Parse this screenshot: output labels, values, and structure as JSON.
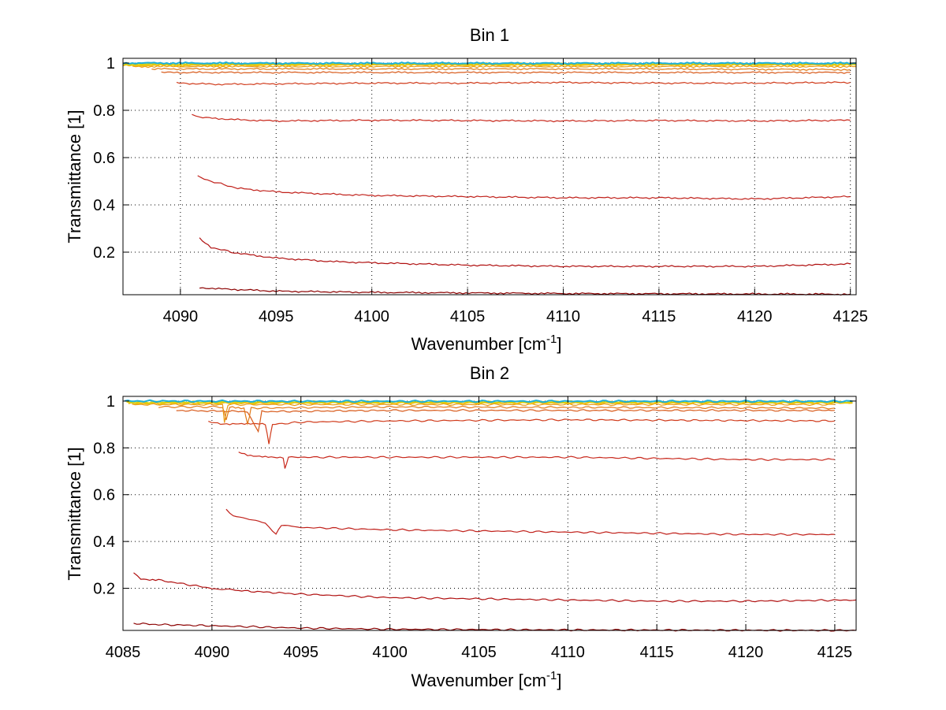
{
  "chart_data": [
    {
      "type": "line",
      "title": "Bin 1",
      "xlabel": "Wavenumber [cm",
      "xlabel_sup": "-1",
      "xlabel_end": "]",
      "ylabel": "Transmittance [1]",
      "xlim": [
        4087,
        4125.3
      ],
      "ylim": [
        0.02,
        1.02
      ],
      "xticks": [
        "4090",
        "4095",
        "4100",
        "4105",
        "4110",
        "4115",
        "4120",
        "4125"
      ],
      "yticks": [
        "0.2",
        "0.4",
        "0.6",
        "0.8",
        "1"
      ],
      "grid": true,
      "series": [
        {
          "color": "#8b0000",
          "start": 4091.0,
          "end": 4125,
          "values": [
            [
              4091.0,
              0.05
            ],
            [
              4092,
              0.045
            ],
            [
              4095,
              0.035
            ],
            [
              4100,
              0.03
            ],
            [
              4110,
              0.025
            ],
            [
              4125,
              0.022
            ]
          ]
        },
        {
          "color": "#b01010",
          "start": 4091.0,
          "end": 4125,
          "values": [
            [
              4091.0,
              0.26
            ],
            [
              4091.6,
              0.22
            ],
            [
              4093,
              0.195
            ],
            [
              4095,
              0.175
            ],
            [
              4098,
              0.16
            ],
            [
              4100,
              0.155
            ],
            [
              4105,
              0.145
            ],
            [
              4110,
              0.14
            ],
            [
              4115,
              0.14
            ],
            [
              4120,
              0.14
            ],
            [
              4125,
              0.15
            ]
          ]
        },
        {
          "color": "#c0201a",
          "start": 4090.9,
          "end": 4125,
          "values": [
            [
              4090.9,
              0.52
            ],
            [
              4091.6,
              0.5
            ],
            [
              4093,
              0.47
            ],
            [
              4095,
              0.455
            ],
            [
              4098,
              0.445
            ],
            [
              4100,
              0.44
            ],
            [
              4105,
              0.435
            ],
            [
              4110,
              0.43
            ],
            [
              4115,
              0.43
            ],
            [
              4120,
              0.425
            ],
            [
              4125,
              0.435
            ]
          ]
        },
        {
          "color": "#c8281c",
          "start": 4090.6,
          "end": 4125,
          "values": [
            [
              4090.6,
              0.78
            ],
            [
              4091,
              0.77
            ],
            [
              4093,
              0.76
            ],
            [
              4095,
              0.755
            ],
            [
              4100,
              0.758
            ],
            [
              4105,
              0.757
            ],
            [
              4110,
              0.755
            ],
            [
              4115,
              0.757
            ],
            [
              4120,
              0.755
            ],
            [
              4125,
              0.758
            ]
          ]
        },
        {
          "color": "#d03a1a",
          "start": 4089.8,
          "end": 4125,
          "values": [
            [
              4089.8,
              0.915
            ],
            [
              4092,
              0.91
            ],
            [
              4095,
              0.912
            ],
            [
              4100,
              0.915
            ],
            [
              4105,
              0.915
            ],
            [
              4110,
              0.918
            ],
            [
              4115,
              0.915
            ],
            [
              4120,
              0.915
            ],
            [
              4125,
              0.918
            ]
          ]
        },
        {
          "color": "#d85a1a",
          "start": 4089.0,
          "end": 4125,
          "values": [
            [
              4089.0,
              0.96
            ],
            [
              4095,
              0.96
            ],
            [
              4105,
              0.96
            ],
            [
              4115,
              0.96
            ],
            [
              4125,
              0.96
            ]
          ]
        },
        {
          "color": "#e07a18",
          "start": 4088.5,
          "end": 4125,
          "values": [
            [
              4088.5,
              0.975
            ],
            [
              4095,
              0.975
            ],
            [
              4105,
              0.975
            ],
            [
              4115,
              0.975
            ],
            [
              4125,
              0.972
            ]
          ]
        },
        {
          "color": "#e89a18",
          "start": 4087.5,
          "end": 4125.3,
          "values": [
            [
              4087.5,
              0.985
            ],
            [
              4095,
              0.985
            ],
            [
              4105,
              0.985
            ],
            [
              4115,
              0.985
            ],
            [
              4125.3,
              0.985
            ]
          ]
        },
        {
          "color": "#f0bc10",
          "start": 4087,
          "end": 4125.3,
          "values": [
            [
              4087,
              0.99
            ],
            [
              4095,
              0.992
            ],
            [
              4105,
              0.992
            ],
            [
              4115,
              0.992
            ],
            [
              4125.3,
              0.992
            ]
          ]
        },
        {
          "color": "#d8d010",
          "start": 4087,
          "end": 4125.3,
          "values": [
            [
              4087,
              0.995
            ],
            [
              4095,
              0.996
            ],
            [
              4105,
              0.996
            ],
            [
              4115,
              0.996
            ],
            [
              4125.3,
              0.996
            ]
          ]
        },
        {
          "color": "#1cb0d8",
          "start": 4087,
          "end": 4125.3,
          "values": [
            [
              4087,
              1.0
            ],
            [
              4095,
              0.999
            ],
            [
              4105,
              0.999
            ],
            [
              4115,
              0.999
            ],
            [
              4125.3,
              0.999
            ]
          ]
        }
      ]
    },
    {
      "type": "line",
      "title": "Bin 2",
      "xlabel": "Wavenumber [cm",
      "xlabel_sup": "-1",
      "xlabel_end": "]",
      "ylabel": "Transmittance [1]",
      "xlim": [
        4085,
        4126.2
      ],
      "ylim": [
        0.02,
        1.02
      ],
      "xticks": [
        "4085",
        "4090",
        "4095",
        "4100",
        "4105",
        "4110",
        "4115",
        "4120",
        "4125"
      ],
      "yticks": [
        "0.2",
        "0.4",
        "0.6",
        "0.8",
        "1"
      ],
      "grid": true,
      "series": [
        {
          "color": "#8b0000",
          "start": 4085.6,
          "end": 4126.2,
          "values": [
            [
              4085.6,
              0.05
            ],
            [
              4087,
              0.045
            ],
            [
              4090,
              0.04
            ],
            [
              4095,
              0.03
            ],
            [
              4100,
              0.025
            ],
            [
              4110,
              0.022
            ],
            [
              4126.2,
              0.02
            ]
          ]
        },
        {
          "color": "#b01010",
          "start": 4085.6,
          "end": 4126.2,
          "values": [
            [
              4085.6,
              0.27
            ],
            [
              4086,
              0.24
            ],
            [
              4087,
              0.235
            ],
            [
              4090,
              0.2
            ],
            [
              4091.5,
              0.19
            ],
            [
              4095,
              0.175
            ],
            [
              4100,
              0.16
            ],
            [
              4105,
              0.155
            ],
            [
              4110,
              0.15
            ],
            [
              4115,
              0.145
            ],
            [
              4120,
              0.145
            ],
            [
              4126.2,
              0.15
            ]
          ]
        },
        {
          "color": "#c0201a",
          "start": 4090.8,
          "end": 4125,
          "values": [
            [
              4090.8,
              0.54
            ],
            [
              4091.2,
              0.51
            ],
            [
              4093,
              0.48
            ],
            [
              4093.6,
              0.43
            ],
            [
              4093.9,
              0.47
            ],
            [
              4095,
              0.46
            ],
            [
              4100,
              0.45
            ],
            [
              4105,
              0.445
            ],
            [
              4110,
              0.44
            ],
            [
              4115,
              0.435
            ],
            [
              4120,
              0.43
            ],
            [
              4125,
              0.43
            ]
          ]
        },
        {
          "color": "#c8281c",
          "start": 4091.5,
          "end": 4125,
          "values": [
            [
              4091.5,
              0.78
            ],
            [
              4092,
              0.77
            ],
            [
              4093,
              0.76
            ],
            [
              4094,
              0.76
            ],
            [
              4094.1,
              0.71
            ],
            [
              4094.3,
              0.76
            ],
            [
              4100,
              0.76
            ],
            [
              4105,
              0.76
            ],
            [
              4110,
              0.76
            ],
            [
              4115,
              0.755
            ],
            [
              4120,
              0.75
            ],
            [
              4125,
              0.75
            ]
          ]
        },
        {
          "color": "#d03a1a",
          "start": 4089.8,
          "end": 4125,
          "values": [
            [
              4089.8,
              0.91
            ],
            [
              4091,
              0.9
            ],
            [
              4092,
              0.905
            ],
            [
              4093,
              0.9
            ],
            [
              4093.2,
              0.82
            ],
            [
              4093.4,
              0.9
            ],
            [
              4095,
              0.91
            ],
            [
              4100,
              0.915
            ],
            [
              4110,
              0.92
            ],
            [
              4125,
              0.915
            ]
          ]
        },
        {
          "color": "#d85a1a",
          "start": 4088,
          "end": 4125,
          "values": [
            [
              4088,
              0.96
            ],
            [
              4092,
              0.955
            ],
            [
              4092.6,
              0.87
            ],
            [
              4092.8,
              0.955
            ],
            [
              4100,
              0.96
            ],
            [
              4110,
              0.96
            ],
            [
              4125,
              0.96
            ]
          ]
        },
        {
          "color": "#e07a18",
          "start": 4087,
          "end": 4125,
          "values": [
            [
              4087,
              0.975
            ],
            [
              4090.6,
              0.975
            ],
            [
              4090.8,
              0.92
            ],
            [
              4091,
              0.975
            ],
            [
              4091.8,
              0.97
            ],
            [
              4092,
              0.9
            ],
            [
              4092.2,
              0.97
            ],
            [
              4100,
              0.975
            ],
            [
              4125,
              0.97
            ]
          ]
        },
        {
          "color": "#e89a18",
          "start": 4085.5,
          "end": 4125,
          "values": [
            [
              4085.5,
              0.985
            ],
            [
              4090.6,
              0.985
            ],
            [
              4090.7,
              0.91
            ],
            [
              4090.9,
              0.985
            ],
            [
              4100,
              0.985
            ],
            [
              4125,
              0.985
            ]
          ]
        },
        {
          "color": "#f0bc10",
          "start": 4085.3,
          "end": 4126,
          "values": [
            [
              4085.3,
              0.99
            ],
            [
              4095,
              0.992
            ],
            [
              4105,
              0.992
            ],
            [
              4115,
              0.992
            ],
            [
              4126,
              0.992
            ]
          ]
        },
        {
          "color": "#d8d010",
          "start": 4085.2,
          "end": 4126,
          "values": [
            [
              4085.2,
              0.995
            ],
            [
              4095,
              0.996
            ],
            [
              4105,
              0.996
            ],
            [
              4115,
              0.996
            ],
            [
              4126,
              0.996
            ]
          ]
        },
        {
          "color": "#1cb0d8",
          "start": 4085.1,
          "end": 4126,
          "values": [
            [
              4085.1,
              1.0
            ],
            [
              4095,
              0.999
            ],
            [
              4105,
              0.999
            ],
            [
              4115,
              0.999
            ],
            [
              4126,
              0.999
            ]
          ]
        }
      ]
    }
  ]
}
